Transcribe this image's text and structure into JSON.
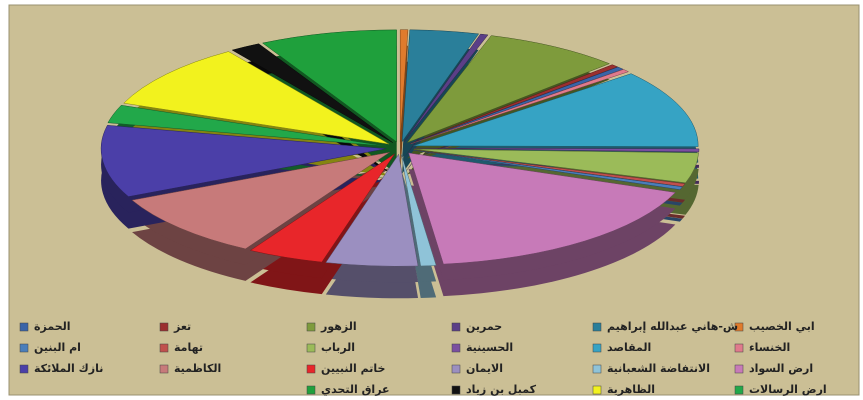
{
  "chart_data": {
    "type": "pie",
    "categories": [
      "ابي الخصيب",
      "ش-هاني عبدالله إبراهيم",
      "حمرين",
      "الزهور",
      "تعز",
      "الحمزة",
      "الخنساء",
      "المقاصد",
      "الحسينية",
      "الرباب",
      "تهامة",
      "ام البنين",
      "ارض السواد",
      "الانتفاضة  الشعبانية",
      "الايمان",
      "خاتم النبيين",
      "الكاظمية",
      "نازك الملائكة",
      "ارض الرسالات",
      "الظاهرية",
      "كمبل بن زياد",
      "عراق التحدي"
    ],
    "values": [
      0.5,
      4.5,
      0.5,
      9,
      0.5,
      0.5,
      0.5,
      13,
      0.5,
      5,
      0.5,
      0.5,
      20,
      1,
      6,
      5,
      11,
      12,
      3,
      11,
      2,
      9
    ],
    "colors": [
      "#e07b2c",
      "#2a7f9a",
      "#5b3f87",
      "#7e9b3c",
      "#9b2f2f",
      "#3a64a8",
      "#e07a8c",
      "#36a3c4",
      "#7a4fa0",
      "#9bbb59",
      "#c0504d",
      "#4a7ebb",
      "#c77ab8",
      "#8fc3d8",
      "#9b8fc0",
      "#e8262a",
      "#c77a7a",
      "#4b3fa8",
      "#22a84a",
      "#f2f21e",
      "#111111",
      "#1fa03c"
    ],
    "legend": "bottom"
  }
}
